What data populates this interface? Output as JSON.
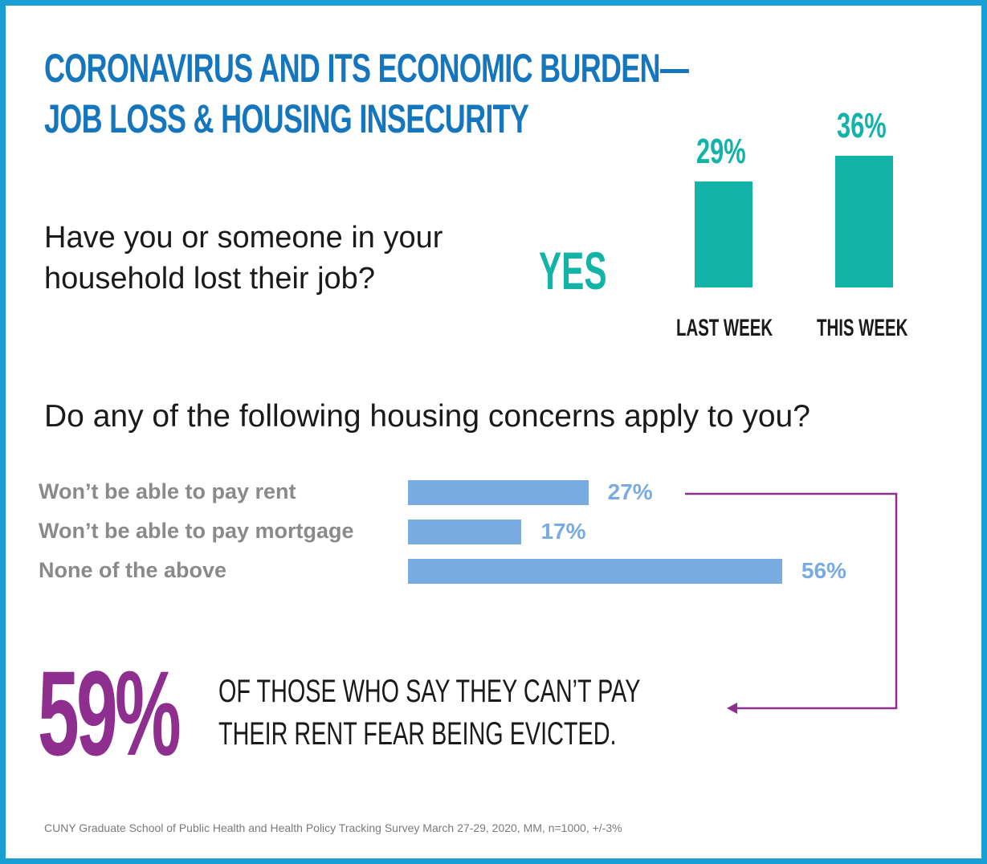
{
  "title": {
    "line1": "CORONAVIRUS AND ITS ECONOMIC BURDEN—",
    "line2": "JOB LOSS & HOUSING INSECURITY"
  },
  "question1": {
    "line1": "Have you or someone in your",
    "line2": "household lost their job?",
    "answer": "YES"
  },
  "question2": "Do any of the following housing concerns apply to you?",
  "callout": {
    "big": "59%",
    "line1": "OF THOSE WHO SAY THEY CAN’T PAY",
    "line2": "THEIR RENT FEAR BEING EVICTED."
  },
  "source": "CUNY Graduate School of Public Health and Health Policy Tracking Survey March 27-29, 2020, MM, n=1000, +/-3%",
  "colors": {
    "frame": "#1a9fd4",
    "title": "#1576bd",
    "teal": "#13b3a8",
    "blue_bar": "#7aabe0",
    "purple": "#8e2e8f",
    "gray_label": "#8a8a8a"
  },
  "chart_data": [
    {
      "type": "bar",
      "orientation": "vertical",
      "categories": [
        "LAST WEEK",
        "THIS WEEK"
      ],
      "values": [
        29,
        36
      ],
      "value_labels": [
        "29%",
        "36%"
      ],
      "unit": "%",
      "color": "#13b3a8"
    },
    {
      "type": "bar",
      "orientation": "horizontal",
      "categories": [
        "Won’t be able to pay rent",
        "Won’t be able to pay mortgage",
        "None of the above"
      ],
      "values": [
        27,
        17,
        56
      ],
      "value_labels": [
        "27%",
        "17%",
        "56%"
      ],
      "unit": "%",
      "color": "#7aabe0"
    }
  ]
}
